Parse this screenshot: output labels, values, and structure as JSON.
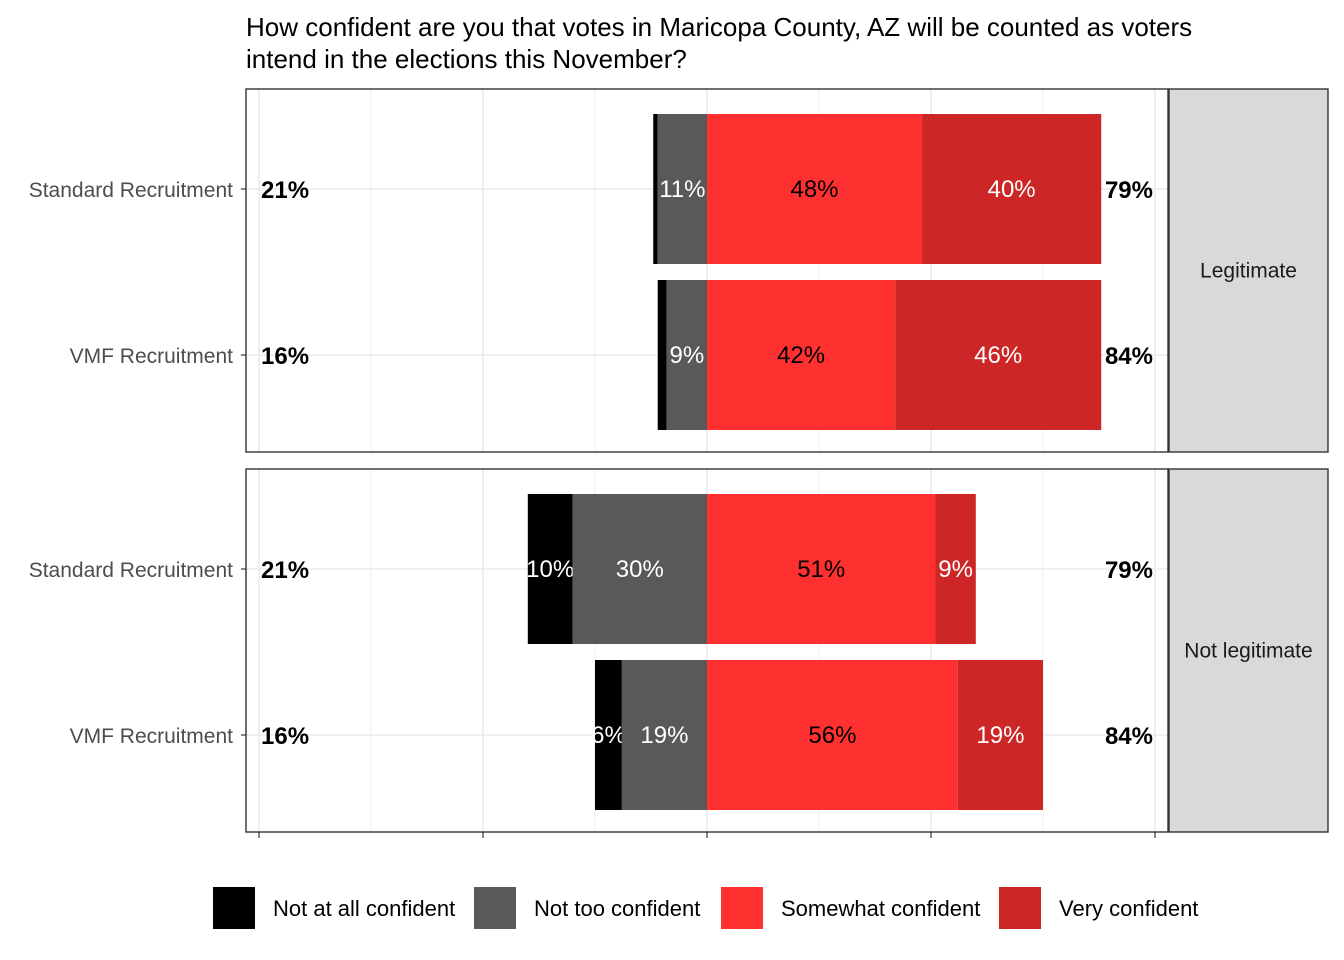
{
  "chart_data": {
    "type": "bar",
    "orientation": "horizontal-diverging",
    "title": "How confident are you that votes in Maricopa County, AZ will be counted as voters intend in the elections this November?",
    "xlabel": "",
    "ylabel": "",
    "xlim": [
      -100,
      100
    ],
    "grid": true,
    "legend_position": "bottom",
    "categories": [
      "Standard Recruitment",
      "VMF Recruitment"
    ],
    "series": [
      {
        "name": "Not at all confident",
        "color": "#000000",
        "text_color": "#ffffff",
        "direction": "negative"
      },
      {
        "name": "Not too confident",
        "color": "#595959",
        "text_color": "#ffffff",
        "direction": "negative"
      },
      {
        "name": "Somewhat confident",
        "color": "#ff3030",
        "text_color": "#000000",
        "direction": "positive"
      },
      {
        "name": "Very confident",
        "color": "#cd2626",
        "text_color": "#ffffff",
        "direction": "positive"
      }
    ],
    "panels": [
      {
        "facet": "Legitimate",
        "rows": [
          {
            "category": "Standard Recruitment",
            "values": [
              1,
              11,
              48,
              40
            ],
            "labels": [
              "",
              "11%",
              "48%",
              "40%"
            ],
            "left_total": "21%",
            "right_total": "79%"
          },
          {
            "category": "VMF Recruitment",
            "values": [
              2,
              9,
              42,
              46
            ],
            "labels": [
              "",
              "9%",
              "42%",
              "46%"
            ],
            "left_total": "16%",
            "right_total": "84%"
          }
        ]
      },
      {
        "facet": "Not legitimate",
        "rows": [
          {
            "category": "Standard Recruitment",
            "values": [
              10,
              30,
              51,
              9
            ],
            "labels": [
              "10%",
              "30%",
              "51%",
              "9%"
            ],
            "left_total": "21%",
            "right_total": "79%"
          },
          {
            "category": "VMF Recruitment",
            "values": [
              6,
              19,
              56,
              19
            ],
            "labels": [
              "6%",
              "19%",
              "56%",
              "19%"
            ],
            "left_total": "16%",
            "right_total": "84%"
          }
        ]
      }
    ]
  }
}
